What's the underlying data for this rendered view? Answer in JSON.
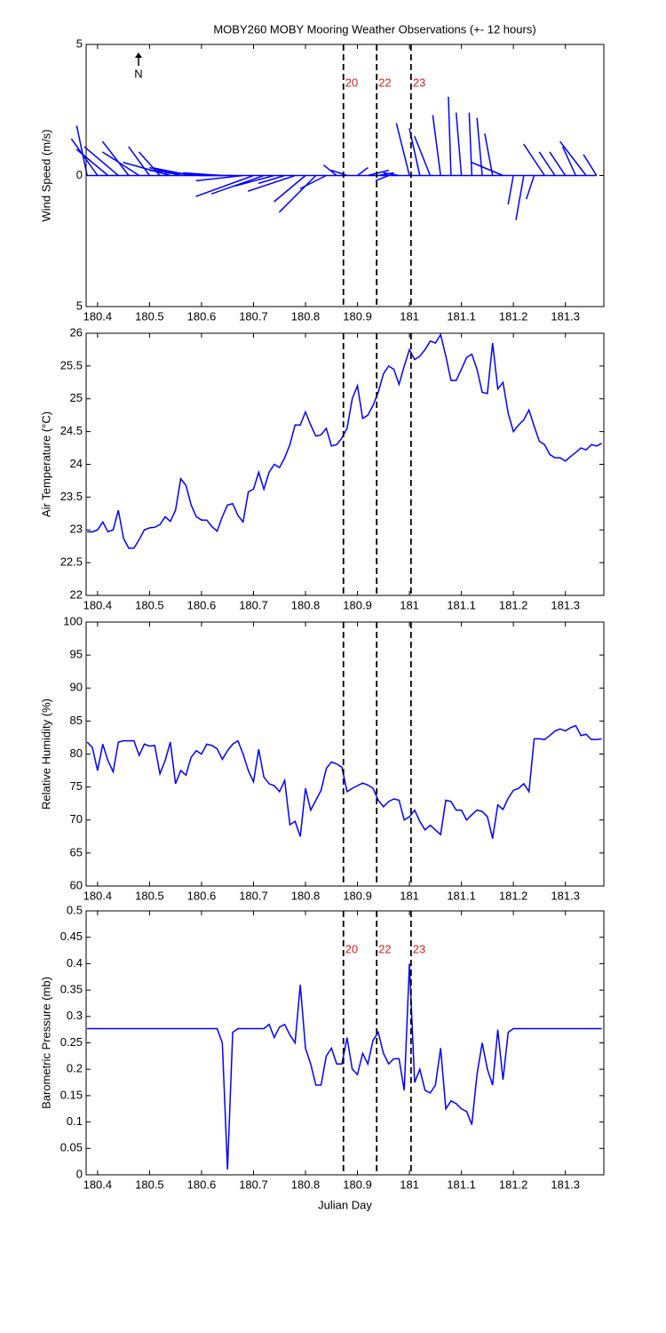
{
  "chart_data": [
    {
      "type": "stick",
      "title": "MOBY260 MOBY Mooring Weather Observations (+- 12 hours)",
      "ylabel": "Wind Speed (m/s)",
      "annotation": "N",
      "color": "#0000ff",
      "x": [
        180.38,
        180.4,
        180.42,
        180.44,
        180.46,
        180.48,
        180.5,
        180.52,
        180.54,
        180.56,
        180.58,
        180.6,
        180.62,
        180.64,
        180.66,
        180.68,
        180.7,
        180.72,
        180.74,
        180.76,
        180.78,
        180.8,
        180.82,
        180.84,
        180.86,
        180.88,
        180.9,
        180.92,
        180.94,
        180.96,
        180.98,
        181.0,
        181.02,
        181.04,
        181.06,
        181.08,
        181.1,
        181.12,
        181.14,
        181.16,
        181.18,
        181.2,
        181.22,
        181.24,
        181.26,
        181.28,
        181.3,
        181.32,
        181.34,
        181.36
      ],
      "u": [
        -0.4,
        -1.0,
        -1.2,
        -1.3,
        -1.0,
        -1.4,
        -0.8,
        -0.8,
        -1.8,
        -1.2,
        -1.5,
        -2.0,
        -1.8,
        -1.5,
        -1.2,
        -1.8,
        -2.2,
        -2.0,
        -1.5,
        -1.0,
        -1.8,
        -1.2,
        -1.4,
        -1.0,
        -0.5,
        -0.6,
        0.4,
        0.8,
        0.6,
        -0.5,
        -0.6,
        -0.5,
        -0.4,
        -0.6,
        -0.3,
        -0.1,
        -0.2,
        -0.1,
        -0.2,
        -0.3,
        -1.2,
        -0.2,
        -0.3,
        -0.3,
        -0.8,
        -0.6,
        -0.6,
        -0.5,
        -1.0,
        -0.5
      ],
      "v": [
        1.9,
        1.4,
        1.0,
        1.1,
        1.3,
        0.9,
        1.1,
        0.9,
        0.5,
        0.3,
        0.3,
        0.2,
        0.1,
        0.1,
        0.0,
        -0.2,
        -0.8,
        -0.7,
        -0.4,
        -0.3,
        -0.6,
        -1.0,
        -1.4,
        -0.5,
        0.4,
        0.2,
        0.3,
        0.2,
        0.1,
        -0.2,
        0.1,
        2.0,
        1.8,
        1.5,
        2.3,
        3.0,
        2.4,
        2.4,
        2.2,
        1.6,
        0.5,
        -1.1,
        -1.7,
        -0.9,
        1.2,
        0.9,
        0.9,
        1.1,
        1.3,
        0.8
      ],
      "xlim": [
        180.378,
        181.374
      ],
      "xticks": [
        180.4,
        180.5,
        180.6,
        180.7,
        180.8,
        180.9,
        181,
        181.1,
        181.2,
        181.3
      ],
      "ylim": [
        -5,
        5
      ],
      "yticks": [
        {
          "value": -5,
          "label": "5"
        },
        0,
        5
      ],
      "vlines": [
        {
          "value": 180.873,
          "label": "20"
        },
        {
          "value": 180.937,
          "label": "22"
        },
        {
          "value": 181.003,
          "label": "23"
        }
      ]
    },
    {
      "type": "line",
      "ylabel": "Air Temperature (°C)",
      "color": "#0000ff",
      "x": [
        180.38,
        180.39,
        180.4,
        180.41,
        180.42,
        180.43,
        180.44,
        180.45,
        180.46,
        180.47,
        180.48,
        180.49,
        180.5,
        180.51,
        180.52,
        180.53,
        180.54,
        180.55,
        180.56,
        180.57,
        180.58,
        180.59,
        180.6,
        180.61,
        180.62,
        180.63,
        180.64,
        180.65,
        180.66,
        180.67,
        180.68,
        180.69,
        180.7,
        180.71,
        180.72,
        180.73,
        180.74,
        180.75,
        180.76,
        180.77,
        180.78,
        180.79,
        180.8,
        180.81,
        180.82,
        180.83,
        180.84,
        180.85,
        180.86,
        180.87,
        180.88,
        180.89,
        180.9,
        180.91,
        180.92,
        180.93,
        180.94,
        180.95,
        180.96,
        180.97,
        180.98,
        180.99,
        181.0,
        181.01,
        181.02,
        181.03,
        181.04,
        181.05,
        181.06,
        181.07,
        181.08,
        181.09,
        181.1,
        181.11,
        181.12,
        181.13,
        181.14,
        181.15,
        181.16,
        181.17,
        181.18,
        181.19,
        181.2,
        181.21,
        181.22,
        181.23,
        181.24,
        181.25,
        181.26,
        181.27,
        181.28,
        181.29,
        181.3,
        181.31,
        181.32,
        181.33,
        181.34,
        181.35,
        181.36,
        181.37
      ],
      "values": [
        22.97,
        22.97,
        23.0,
        23.12,
        22.97,
        23.0,
        23.3,
        22.87,
        22.72,
        22.72,
        22.85,
        23.0,
        23.03,
        23.04,
        23.08,
        23.2,
        23.13,
        23.3,
        23.78,
        23.68,
        23.38,
        23.2,
        23.15,
        23.15,
        23.05,
        22.98,
        23.2,
        23.38,
        23.4,
        23.22,
        23.12,
        23.58,
        23.62,
        23.88,
        23.62,
        23.88,
        24.0,
        23.95,
        24.1,
        24.3,
        24.6,
        24.6,
        24.8,
        24.6,
        24.43,
        24.45,
        24.55,
        24.28,
        24.3,
        24.4,
        24.55,
        25.0,
        25.2,
        24.7,
        24.75,
        24.9,
        25.1,
        25.38,
        25.5,
        25.45,
        25.22,
        25.5,
        25.75,
        25.6,
        25.65,
        25.75,
        25.88,
        25.85,
        25.98,
        25.65,
        25.28,
        25.28,
        25.45,
        25.63,
        25.68,
        25.45,
        25.1,
        25.08,
        25.85,
        25.15,
        25.25,
        24.78,
        24.5,
        24.6,
        24.68,
        24.83,
        24.58,
        24.35,
        24.3,
        24.15,
        24.1,
        24.1,
        24.05,
        24.12,
        24.18,
        24.25,
        24.22,
        24.3,
        24.28,
        24.32
      ],
      "xlim": [
        180.378,
        181.374
      ],
      "xticks": [
        180.4,
        180.5,
        180.6,
        180.7,
        180.8,
        180.9,
        181,
        181.1,
        181.2,
        181.3
      ],
      "ylim": [
        22,
        26
      ],
      "yticks": [
        22,
        22.5,
        23,
        23.5,
        24,
        24.5,
        25,
        25.5,
        26
      ],
      "vlines": [
        180.873,
        180.937,
        181.003
      ]
    },
    {
      "type": "line",
      "ylabel": "Relative Humidity (%)",
      "color": "#0000ff",
      "x": [
        180.38,
        180.39,
        180.4,
        180.41,
        180.42,
        180.43,
        180.44,
        180.45,
        180.46,
        180.47,
        180.48,
        180.49,
        180.5,
        180.51,
        180.52,
        180.53,
        180.54,
        180.55,
        180.56,
        180.57,
        180.58,
        180.59,
        180.6,
        180.61,
        180.62,
        180.63,
        180.64,
        180.65,
        180.66,
        180.67,
        180.68,
        180.69,
        180.7,
        180.71,
        180.72,
        180.73,
        180.74,
        180.75,
        180.76,
        180.77,
        180.78,
        180.79,
        180.8,
        180.81,
        180.82,
        180.83,
        180.84,
        180.85,
        180.86,
        180.87,
        180.88,
        180.89,
        180.9,
        180.91,
        180.92,
        180.93,
        180.94,
        180.95,
        180.96,
        180.97,
        180.98,
        180.99,
        181.0,
        181.01,
        181.02,
        181.03,
        181.04,
        181.05,
        181.06,
        181.07,
        181.08,
        181.09,
        181.1,
        181.11,
        181.12,
        181.13,
        181.14,
        181.15,
        181.16,
        181.17,
        181.18,
        181.19,
        181.2,
        181.21,
        181.22,
        181.23,
        181.24,
        181.25,
        181.26,
        181.27,
        181.28,
        181.29,
        181.3,
        181.31,
        181.32,
        181.33,
        181.34,
        181.35,
        181.36,
        181.37
      ],
      "values": [
        81.8,
        81.0,
        77.5,
        81.5,
        79.0,
        77.3,
        81.8,
        82.0,
        82.0,
        82.0,
        79.8,
        81.5,
        81.2,
        81.3,
        77.0,
        79.0,
        81.8,
        75.5,
        77.5,
        76.8,
        79.5,
        80.5,
        80.0,
        81.5,
        81.3,
        80.8,
        79.2,
        80.5,
        81.5,
        82.0,
        80.0,
        77.5,
        75.8,
        80.7,
        76.5,
        75.5,
        75.2,
        74.3,
        76.0,
        69.3,
        69.8,
        67.5,
        74.8,
        71.5,
        73.0,
        74.5,
        77.8,
        78.8,
        78.5,
        78.0,
        74.3,
        74.8,
        75.2,
        75.6,
        75.3,
        74.8,
        73.0,
        72.0,
        72.8,
        73.2,
        73.0,
        70.0,
        70.5,
        71.5,
        69.8,
        68.5,
        69.2,
        68.5,
        67.8,
        73.0,
        72.8,
        71.5,
        71.5,
        70.0,
        70.8,
        71.5,
        71.3,
        70.5,
        67.2,
        72.3,
        71.6,
        73.3,
        74.5,
        74.8,
        75.5,
        74.3,
        82.3,
        82.3,
        82.2,
        82.8,
        83.5,
        83.8,
        83.5,
        84.0,
        84.3,
        82.8,
        83.0,
        82.2,
        82.2,
        82.3
      ],
      "xlim": [
        180.378,
        181.374
      ],
      "xticks": [
        180.4,
        180.5,
        180.6,
        180.7,
        180.8,
        180.9,
        181,
        181.1,
        181.2,
        181.3
      ],
      "ylim": [
        60,
        100
      ],
      "yticks": [
        60,
        65,
        70,
        75,
        80,
        85,
        90,
        95,
        100
      ],
      "vlines": [
        180.873,
        180.937,
        181.003
      ]
    },
    {
      "type": "line",
      "ylabel": "Barometric Pressure (mb)",
      "xlabel": "Julian Day",
      "color": "#0000ff",
      "x": [
        180.38,
        180.39,
        180.4,
        180.41,
        180.42,
        180.43,
        180.44,
        180.45,
        180.46,
        180.47,
        180.48,
        180.49,
        180.5,
        180.51,
        180.52,
        180.53,
        180.54,
        180.55,
        180.56,
        180.57,
        180.58,
        180.59,
        180.6,
        180.61,
        180.62,
        180.63,
        180.64,
        180.65,
        180.66,
        180.67,
        180.68,
        180.69,
        180.7,
        180.71,
        180.72,
        180.73,
        180.74,
        180.75,
        180.76,
        180.77,
        180.78,
        180.79,
        180.8,
        180.81,
        180.82,
        180.83,
        180.84,
        180.85,
        180.86,
        180.87,
        180.88,
        180.89,
        180.9,
        180.91,
        180.92,
        180.93,
        180.94,
        180.95,
        180.96,
        180.97,
        180.98,
        180.99,
        181.0,
        181.01,
        181.02,
        181.03,
        181.04,
        181.05,
        181.06,
        181.07,
        181.08,
        181.09,
        181.1,
        181.11,
        181.12,
        181.13,
        181.14,
        181.15,
        181.16,
        181.17,
        181.18,
        181.19,
        181.2,
        181.21,
        181.22,
        181.23,
        181.24,
        181.25,
        181.26,
        181.27,
        181.28,
        181.29,
        181.3,
        181.31,
        181.32,
        181.33,
        181.34,
        181.35,
        181.36,
        181.37
      ],
      "values": [
        0.277,
        0.277,
        0.277,
        0.277,
        0.277,
        0.277,
        0.277,
        0.277,
        0.277,
        0.277,
        0.277,
        0.277,
        0.277,
        0.277,
        0.277,
        0.277,
        0.277,
        0.277,
        0.277,
        0.277,
        0.277,
        0.277,
        0.277,
        0.277,
        0.277,
        0.277,
        0.25,
        0.01,
        0.27,
        0.277,
        0.277,
        0.277,
        0.277,
        0.277,
        0.277,
        0.285,
        0.26,
        0.28,
        0.285,
        0.265,
        0.25,
        0.36,
        0.24,
        0.21,
        0.17,
        0.17,
        0.225,
        0.24,
        0.21,
        0.21,
        0.26,
        0.2,
        0.19,
        0.23,
        0.21,
        0.255,
        0.27,
        0.23,
        0.21,
        0.22,
        0.22,
        0.16,
        0.4,
        0.175,
        0.2,
        0.16,
        0.155,
        0.17,
        0.24,
        0.125,
        0.14,
        0.135,
        0.125,
        0.12,
        0.095,
        0.19,
        0.25,
        0.2,
        0.17,
        0.275,
        0.18,
        0.27,
        0.277,
        0.277,
        0.277,
        0.277,
        0.277,
        0.277,
        0.277,
        0.277,
        0.277,
        0.277,
        0.277,
        0.277,
        0.277,
        0.277,
        0.277,
        0.277,
        0.277,
        0.277
      ],
      "xlim": [
        180.378,
        181.374
      ],
      "xticks": [
        180.4,
        180.5,
        180.6,
        180.7,
        180.8,
        180.9,
        181,
        181.1,
        181.2,
        181.3
      ],
      "ylim": [
        0,
        0.5
      ],
      "yticks": [
        0,
        0.05,
        0.1,
        0.15,
        0.2,
        0.25,
        0.3,
        0.35,
        0.4,
        0.45,
        0.5
      ],
      "vlines": [
        {
          "value": 180.873,
          "label": "20"
        },
        {
          "value": 180.937,
          "label": "22"
        },
        {
          "value": 181.003,
          "label": "23"
        }
      ]
    }
  ]
}
